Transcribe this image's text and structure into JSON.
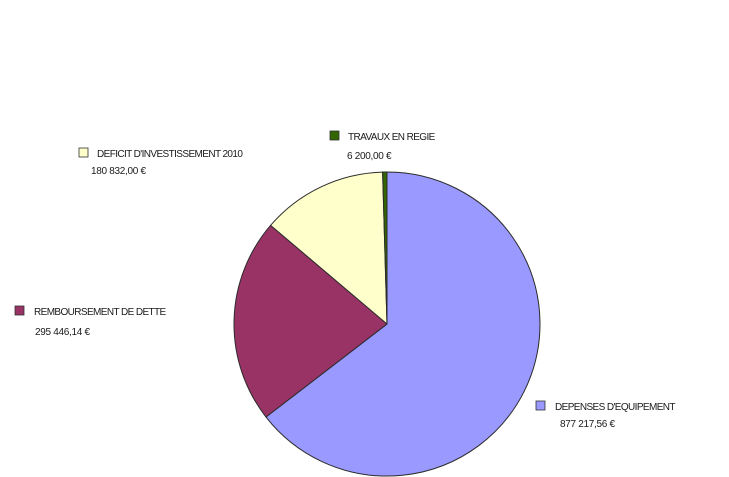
{
  "chart_data": {
    "type": "pie",
    "unit": "€",
    "slices": [
      {
        "label": "DEPENSES D'EQUIPEMENT",
        "value": 877217.56,
        "value_text": "877 217,56 €",
        "color": "#9999ff"
      },
      {
        "label": "REMBOURSEMENT DE DETTE",
        "value": 295446.14,
        "value_text": "295 446,14 €",
        "color": "#993366"
      },
      {
        "label": "DEFICIT D'INVESTISSEMENT 2010",
        "value": 180832.0,
        "value_text": "180 832,00 €",
        "color": "#ffffcc"
      },
      {
        "label": "TRAVAUX EN REGIE",
        "value": 6200.0,
        "value_text": "6 200,00 €",
        "color": "#336600"
      }
    ],
    "start": "12 o'clock",
    "direction": "clockwise",
    "legend": "labels beside slices"
  }
}
